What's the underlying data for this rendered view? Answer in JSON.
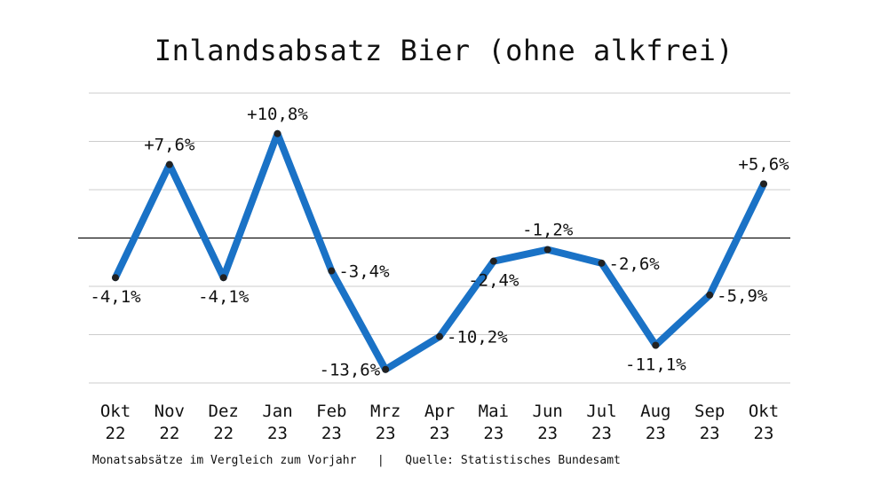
{
  "title": "Inlandsabsatz Bier (ohne alkfrei)",
  "footer": {
    "left": "Monatsabsätze im Vergleich zum Vorjahr",
    "separator": "|",
    "right": "Quelle: Statistisches Bundesamt"
  },
  "colors": {
    "line": "#1a72c6",
    "point": "#222222",
    "grid": "#cccccc",
    "zero": "#111111"
  },
  "chart_data": {
    "type": "line",
    "title": "Inlandsabsatz Bier (ohne alkfrei)",
    "categories": [
      [
        "Okt",
        "22"
      ],
      [
        "Nov",
        "22"
      ],
      [
        "Dez",
        "22"
      ],
      [
        "Jan",
        "23"
      ],
      [
        "Feb",
        "23"
      ],
      [
        "Mrz",
        "23"
      ],
      [
        "Apr",
        "23"
      ],
      [
        "Mai",
        "23"
      ],
      [
        "Jun",
        "23"
      ],
      [
        "Jul",
        "23"
      ],
      [
        "Aug",
        "23"
      ],
      [
        "Sep",
        "23"
      ],
      [
        "Okt",
        "23"
      ]
    ],
    "values": [
      -4.1,
      7.6,
      -4.1,
      10.8,
      -3.4,
      -13.6,
      -10.2,
      -2.4,
      -1.2,
      -2.6,
      -11.1,
      -5.9,
      5.6
    ],
    "data_labels": [
      "-4,1%",
      "+7,6%",
      "-4,1%",
      "+10,8%",
      "-3,4%",
      "-13,6%",
      "-10,2%",
      "-2,4%",
      "-1,2%",
      "-2,6%",
      "-11,1%",
      "-5,9%",
      "+5,6%"
    ],
    "label_positions": [
      "below",
      "above",
      "below",
      "above",
      "right",
      "left",
      "right",
      "below",
      "above",
      "right",
      "below",
      "right",
      "above"
    ],
    "ylim": [
      -15,
      15
    ],
    "grid": true,
    "xlabel": "",
    "ylabel": ""
  }
}
